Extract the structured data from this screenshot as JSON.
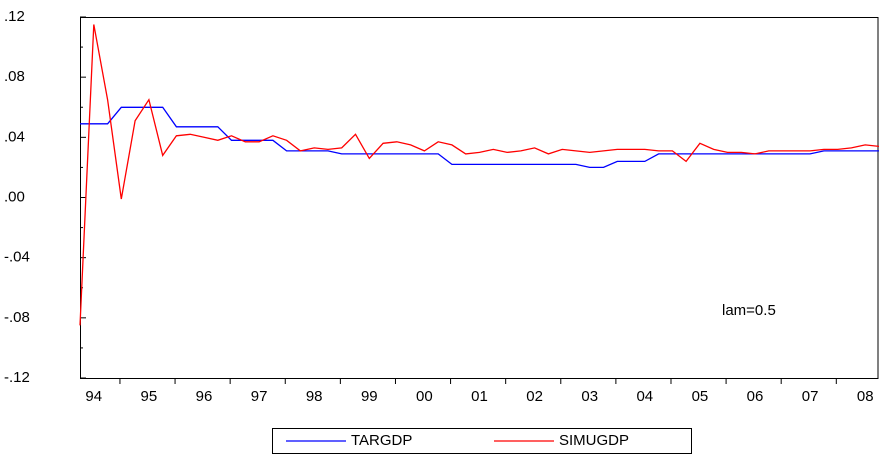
{
  "chart_data": {
    "type": "line",
    "annotation": "lam=0.5",
    "categories": [
      "94",
      null,
      null,
      null,
      "95",
      null,
      null,
      null,
      "96",
      null,
      null,
      null,
      "97",
      null,
      null,
      null,
      "98",
      null,
      null,
      null,
      "99",
      null,
      null,
      null,
      "00",
      null,
      null,
      null,
      "01",
      null,
      null,
      null,
      "02",
      null,
      null,
      null,
      "03",
      null,
      null,
      null,
      "04",
      null,
      null,
      null,
      "05",
      null,
      null,
      null,
      "06",
      null,
      null,
      null,
      "07",
      null,
      null,
      null,
      "08",
      null,
      null
    ],
    "ylim": [
      -0.12,
      0.12
    ],
    "yticks": [
      {
        "value": -0.12,
        "label": "-.12"
      },
      {
        "value": -0.08,
        "label": "-.08"
      },
      {
        "value": -0.04,
        "label": "-.04"
      },
      {
        "value": 0,
        "label": ".00"
      },
      {
        "value": 0.04,
        "label": ".04"
      },
      {
        "value": 0.08,
        "label": ".08"
      },
      {
        "value": 0.12,
        "label": ".12"
      }
    ],
    "series": [
      {
        "name": "TARGDP",
        "color": "#0000ff",
        "values": [
          0.049,
          0.049,
          0.049,
          0.06,
          0.06,
          0.06,
          0.06,
          0.047,
          0.047,
          0.047,
          0.047,
          0.038,
          0.038,
          0.038,
          0.038,
          0.031,
          0.031,
          0.031,
          0.031,
          0.029,
          0.029,
          0.029,
          0.029,
          0.029,
          0.029,
          0.029,
          0.029,
          0.022,
          0.022,
          0.022,
          0.022,
          0.022,
          0.022,
          0.022,
          0.022,
          0.022,
          0.022,
          0.02,
          0.02,
          0.024,
          0.024,
          0.024,
          0.029,
          0.029,
          0.029,
          0.029,
          0.029,
          0.029,
          0.029,
          0.029,
          0.029,
          0.029,
          0.029,
          0.029,
          0.031,
          0.031,
          0.031,
          0.031,
          0.031
        ]
      },
      {
        "name": "SIMUGDP",
        "color": "#ff0000",
        "values": [
          -0.085,
          0.115,
          0.065,
          -0.001,
          0.051,
          0.065,
          0.028,
          0.041,
          0.042,
          0.04,
          0.038,
          0.041,
          0.037,
          0.037,
          0.041,
          0.038,
          0.031,
          0.033,
          0.032,
          0.033,
          0.042,
          0.026,
          0.036,
          0.037,
          0.035,
          0.031,
          0.037,
          0.035,
          0.029,
          0.03,
          0.032,
          0.03,
          0.031,
          0.033,
          0.029,
          0.032,
          0.031,
          0.03,
          0.031,
          0.032,
          0.032,
          0.032,
          0.031,
          0.031,
          0.024,
          0.036,
          0.032,
          0.03,
          0.03,
          0.029,
          0.031,
          0.031,
          0.031,
          0.031,
          0.032,
          0.032,
          0.033,
          0.035,
          0.034
        ]
      }
    ]
  }
}
